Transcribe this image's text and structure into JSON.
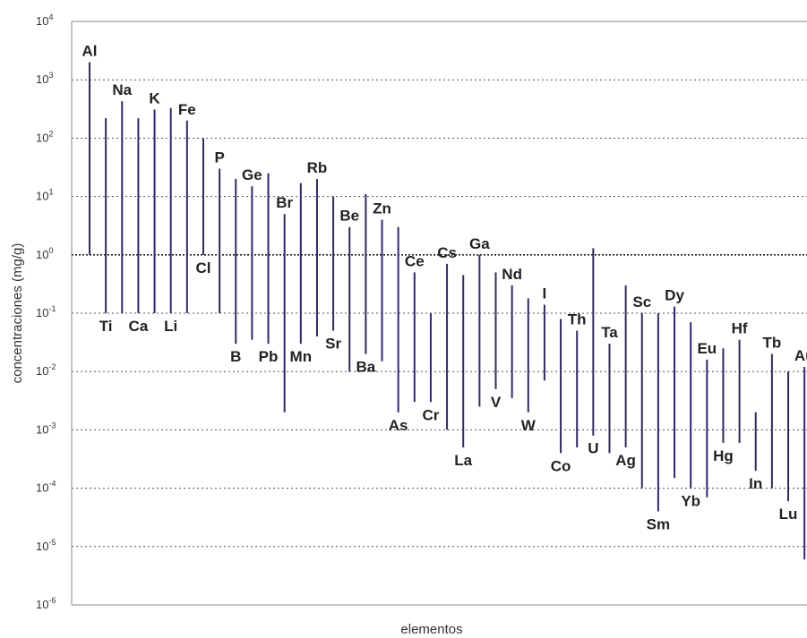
{
  "chart_data": {
    "type": "range",
    "title": "",
    "xlabel": "elementos",
    "ylabel": "concentraciones (mg/g)",
    "yscale": "log",
    "ylim": [
      1e-06,
      10000
    ],
    "y_ticks": [
      {
        "base": "10",
        "exp": "4"
      },
      {
        "base": "10",
        "exp": "3"
      },
      {
        "base": "10",
        "exp": "2"
      },
      {
        "base": "10",
        "exp": "1"
      },
      {
        "base": "10",
        "exp": "0"
      },
      {
        "base": "10",
        "exp": "-1"
      },
      {
        "base": "10",
        "exp": "-2"
      },
      {
        "base": "10",
        "exp": "-3"
      },
      {
        "base": "10",
        "exp": "-4"
      },
      {
        "base": "10",
        "exp": "-5"
      },
      {
        "base": "10",
        "exp": "-6"
      }
    ],
    "grid": "dotted horizontal lines at each decade",
    "reference_line": 1,
    "colors": {
      "bars": "#2f2a6e",
      "grid": "#555555",
      "axes": "#888888"
    },
    "ranges": [
      {
        "element": "Al",
        "min": 1,
        "max": 2000,
        "label_pos": "top"
      },
      {
        "element": "Ti",
        "min": 0.1,
        "max": 220,
        "label_pos": "bottom"
      },
      {
        "element": "Na",
        "min": 0.1,
        "max": 430,
        "label_pos": "top"
      },
      {
        "element": "Ca",
        "min": 0.1,
        "max": 220,
        "label_pos": "bottom"
      },
      {
        "element": "K",
        "min": 0.1,
        "max": 310,
        "label_pos": "top"
      },
      {
        "element": "Li",
        "min": 0.1,
        "max": 330,
        "label_pos": "bottom"
      },
      {
        "element": "Fe",
        "min": 0.1,
        "max": 200,
        "label_pos": "top"
      },
      {
        "element": "Cl",
        "min": 1,
        "max": 100,
        "label_pos": "bottom"
      },
      {
        "element": "P",
        "min": 0.1,
        "max": 30,
        "label_pos": "top"
      },
      {
        "element": "B",
        "min": 0.03,
        "max": 20,
        "label_pos": "bottom"
      },
      {
        "element": "Ge",
        "min": 0.035,
        "max": 15,
        "label_pos": "top"
      },
      {
        "element": "Pb",
        "min": 0.03,
        "max": 25,
        "label_pos": "bottom"
      },
      {
        "element": "Br",
        "min": 0.002,
        "max": 5,
        "label_pos": "top"
      },
      {
        "element": "Mn",
        "min": 0.03,
        "max": 17,
        "label_pos": "bottom"
      },
      {
        "element": "Rb",
        "min": 0.04,
        "max": 20,
        "label_pos": "top"
      },
      {
        "element": "Sr",
        "min": 0.05,
        "max": 10,
        "label_pos": "bottom"
      },
      {
        "element": "Be",
        "min": 0.01,
        "max": 3,
        "label_pos": "top"
      },
      {
        "element": "Ba",
        "min": 0.02,
        "max": 11,
        "label_pos": "bottom"
      },
      {
        "element": "Zn",
        "min": 0.015,
        "max": 4,
        "label_pos": "top"
      },
      {
        "element": "As",
        "min": 0.002,
        "max": 3,
        "label_pos": "bottom"
      },
      {
        "element": "Ce",
        "min": 0.003,
        "max": 0.5,
        "label_pos": "top"
      },
      {
        "element": "Cr",
        "min": 0.003,
        "max": 0.1,
        "label_pos": "bottom"
      },
      {
        "element": "Cs",
        "min": 0.001,
        "max": 0.7,
        "label_pos": "top"
      },
      {
        "element": "La",
        "min": 0.0005,
        "max": 0.45,
        "label_pos": "bottom"
      },
      {
        "element": "Ga",
        "min": 0.0025,
        "max": 1,
        "label_pos": "top"
      },
      {
        "element": "V",
        "min": 0.005,
        "max": 0.5,
        "label_pos": "bottom"
      },
      {
        "element": "Nd",
        "min": 0.0035,
        "max": 0.3,
        "label_pos": "top"
      },
      {
        "element": "W",
        "min": 0.002,
        "max": 0.18,
        "label_pos": "bottom"
      },
      {
        "element": "I",
        "min": 0.007,
        "max": 0.14,
        "label_pos": "top"
      },
      {
        "element": "Co",
        "min": 0.0004,
        "max": 0.08,
        "label_pos": "bottom"
      },
      {
        "element": "Th",
        "min": 0.0005,
        "max": 0.05,
        "label_pos": "top"
      },
      {
        "element": "U",
        "min": 0.0008,
        "max": 1.3,
        "label_pos": "bottom"
      },
      {
        "element": "Ta",
        "min": 0.0004,
        "max": 0.03,
        "label_pos": "top"
      },
      {
        "element": "Ag",
        "min": 0.0005,
        "max": 0.3,
        "label_pos": "bottom"
      },
      {
        "element": "Sc",
        "min": 0.0001,
        "max": 0.1,
        "label_pos": "top"
      },
      {
        "element": "Sm",
        "min": 4e-05,
        "max": 0.1,
        "label_pos": "bottom"
      },
      {
        "element": "Dy",
        "min": 0.00015,
        "max": 0.13,
        "label_pos": "top"
      },
      {
        "element": "Yb",
        "min": 0.0001,
        "max": 0.07,
        "label_pos": "bottom"
      },
      {
        "element": "Eu",
        "min": 7e-05,
        "max": 0.016,
        "label_pos": "top"
      },
      {
        "element": "Hg",
        "min": 0.0006,
        "max": 0.025,
        "label_pos": "bottom"
      },
      {
        "element": "Hf",
        "min": 0.0006,
        "max": 0.035,
        "label_pos": "top"
      },
      {
        "element": "In",
        "min": 0.0002,
        "max": 0.002,
        "label_pos": "bottom"
      },
      {
        "element": "Tb",
        "min": 0.0001,
        "max": 0.02,
        "label_pos": "top"
      },
      {
        "element": "Lu",
        "min": 6e-05,
        "max": 0.01,
        "label_pos": "bottom"
      },
      {
        "element": "Au",
        "min": 6e-06,
        "max": 0.012,
        "label_pos": "top"
      }
    ]
  }
}
